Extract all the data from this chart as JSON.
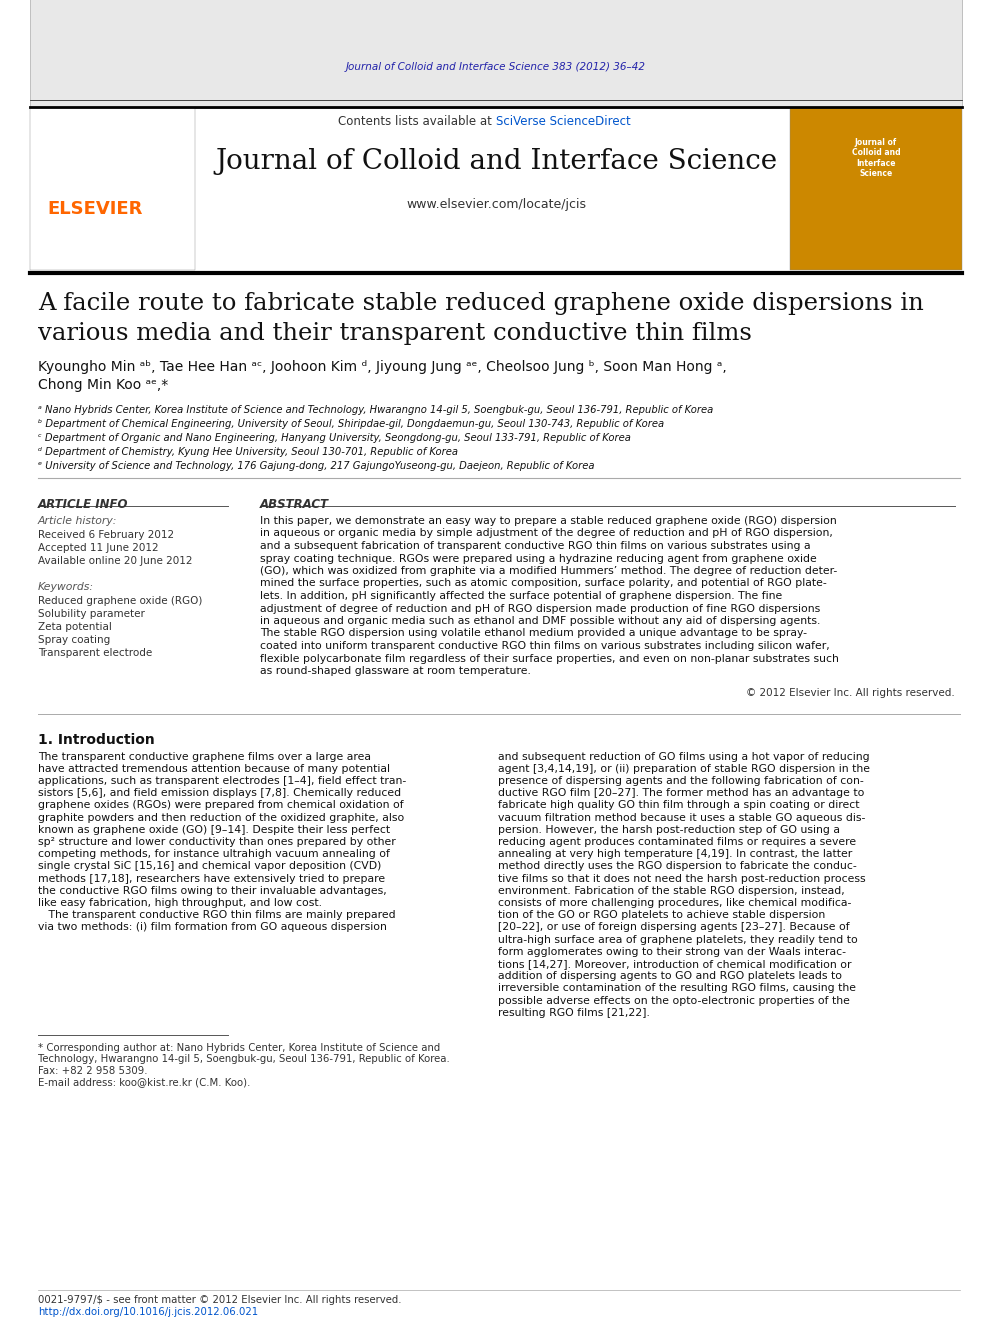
{
  "page_bg": "#ffffff",
  "top_journal_ref": "Journal of Colloid and Interface Science 383 (2012) 36–42",
  "top_journal_ref_color": "#2222aa",
  "header_bg": "#e8e8e8",
  "header_contents": "Contents lists available at ",
  "header_sciverse": "SciVerse ScienceDirect",
  "header_sciverse_color": "#0055cc",
  "journal_title": "Journal of Colloid and Interface Science",
  "journal_url": "www.elsevier.com/locate/jcis",
  "elsevier_color": "#FF6600",
  "article_title_line1": "A facile route to fabricate stable reduced graphene oxide dispersions in",
  "article_title_line2": "various media and their transparent conductive thin films",
  "authors": "Kyoungho Min ᵃᵇ, Tae Hee Han ᵃᶜ, Joohoon Kim ᵈ, Jiyoung Jung ᵃᵉ, Cheolsoo Jung ᵇ, Soon Man Hong ᵃ,",
  "authors2": "Chong Min Koo ᵃᵉ,*",
  "affil_a": "ᵃ Nano Hybrids Center, Korea Institute of Science and Technology, Hwarangno 14-gil 5, Soengbuk-gu, Seoul 136-791, Republic of Korea",
  "affil_b": "ᵇ Department of Chemical Engineering, University of Seoul, Shiripdae-gil, Dongdaemun-gu, Seoul 130-743, Republic of Korea",
  "affil_c": "ᶜ Department of Organic and Nano Engineering, Hanyang University, Seongdong-gu, Seoul 133-791, Republic of Korea",
  "affil_d": "ᵈ Department of Chemistry, Kyung Hee University, Seoul 130-701, Republic of Korea",
  "affil_e": "ᵉ University of Science and Technology, 176 Gajung-dong, 217 GajungoYuseong-gu, Daejeon, Republic of Korea",
  "article_info_title": "ARTICLE INFO",
  "article_history_title": "Article history:",
  "received": "Received 6 February 2012",
  "accepted": "Accepted 11 June 2012",
  "available": "Available online 20 June 2012",
  "keywords_title": "Keywords:",
  "keyword1": "Reduced graphene oxide (RGO)",
  "keyword2": "Solubility parameter",
  "keyword3": "Zeta potential",
  "keyword4": "Spray coating",
  "keyword5": "Transparent electrode",
  "abstract_title": "ABSTRACT",
  "abstract_text": "In this paper, we demonstrate an easy way to prepare a stable reduced graphene oxide (RGO) dispersion\nin aqueous or organic media by simple adjustment of the degree of reduction and pH of RGO dispersion,\nand a subsequent fabrication of transparent conductive RGO thin films on various substrates using a\nspray coating technique. RGOs were prepared using a hydrazine reducing agent from graphene oxide\n(GO), which was oxidized from graphite via a modified Hummers’ method. The degree of reduction deter-\nmined the surface properties, such as atomic composition, surface polarity, and potential of RGO plate-\nlets. In addition, pH significantly affected the surface potential of graphene dispersion. The fine\nadjustment of degree of reduction and pH of RGO dispersion made production of fine RGO dispersions\nin aqueous and organic media such as ethanol and DMF possible without any aid of dispersing agents.\nThe stable RGO dispersion using volatile ethanol medium provided a unique advantage to be spray-\ncoated into uniform transparent conductive RGO thin films on various substrates including silicon wafer,\nflexible polycarbonate film regardless of their surface properties, and even on non-planar substrates such\nas round-shaped glassware at room temperature.",
  "copyright": "© 2012 Elsevier Inc. All rights reserved.",
  "intro_heading": "1. Introduction",
  "intro_col1": "The transparent conductive graphene films over a large area\nhave attracted tremendous attention because of many potential\napplications, such as transparent electrodes [1–4], field effect tran-\nsistors [5,6], and field emission displays [7,8]. Chemically reduced\ngraphene oxides (RGOs) were prepared from chemical oxidation of\ngraphite powders and then reduction of the oxidized graphite, also\nknown as graphene oxide (GO) [9–14]. Despite their less perfect\nsp² structure and lower conductivity than ones prepared by other\ncompeting methods, for instance ultrahigh vacuum annealing of\nsingle crystal SiC [15,16] and chemical vapor deposition (CVD)\nmethods [17,18], researchers have extensively tried to prepare\nthe conductive RGO films owing to their invaluable advantages,\nlike easy fabrication, high throughput, and low cost.\n   The transparent conductive RGO thin films are mainly prepared\nvia two methods: (i) film formation from GO aqueous dispersion",
  "intro_col2": "and subsequent reduction of GO films using a hot vapor of reducing\nagent [3,4,14,19], or (ii) preparation of stable RGO dispersion in the\npresence of dispersing agents and the following fabrication of con-\nductive RGO film [20–27]. The former method has an advantage to\nfabricate high quality GO thin film through a spin coating or direct\nvacuum filtration method because it uses a stable GO aqueous dis-\npersion. However, the harsh post-reduction step of GO using a\nreducing agent produces contaminated films or requires a severe\nannealing at very high temperature [4,19]. In contrast, the latter\nmethod directly uses the RGO dispersion to fabricate the conduc-\ntive films so that it does not need the harsh post-reduction process\nenvironment. Fabrication of the stable RGO dispersion, instead,\nconsists of more challenging procedures, like chemical modifica-\ntion of the GO or RGO platelets to achieve stable dispersion\n[20–22], or use of foreign dispersing agents [23–27]. Because of\nultra-high surface area of graphene platelets, they readily tend to\nform agglomerates owing to their strong van der Waals interac-\ntions [14,27]. Moreover, introduction of chemical modification or\naddition of dispersing agents to GO and RGO platelets leads to\nirreversible contamination of the resulting RGO films, causing the\npossible adverse effects on the opto-electronic properties of the\nresulting RGO films [21,22].",
  "footnote1": "* Corresponding author at: Nano Hybrids Center, Korea Institute of Science and",
  "footnote2": "Technology, Hwarangno 14-gil 5, Soengbuk-gu, Seoul 136-791, Republic of Korea.",
  "footnote3": "Fax: +82 2 958 5309.",
  "footnote4": "E-mail address: koo@kist.re.kr (C.M. Koo).",
  "footer1": "0021-9797/$ - see front matter © 2012 Elsevier Inc. All rights reserved.",
  "footer2": "http://dx.doi.org/10.1016/j.jcis.2012.06.021",
  "footer2_color": "#0055cc"
}
